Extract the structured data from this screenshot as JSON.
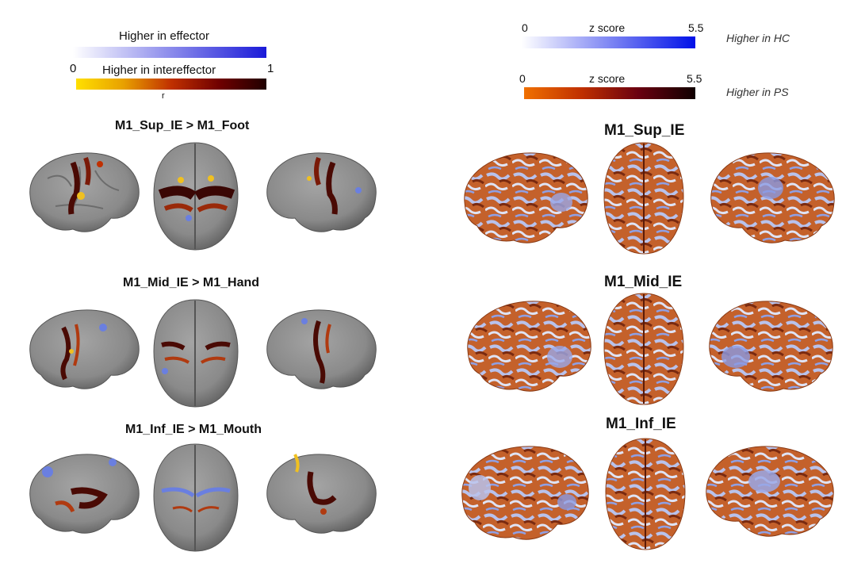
{
  "left_panel": {
    "legend": {
      "top_label": "Higher in effector",
      "bottom_label": "Higher in intereffector",
      "tick_min": "0",
      "tick_max": "1",
      "unit": "r",
      "blue_scale": [
        "#ffffff",
        "#1a1ad8"
      ],
      "heat_scale": [
        "#ffe000",
        "#e8a000",
        "#c03000",
        "#700000",
        "#200000"
      ]
    },
    "rows": [
      {
        "title": "M1_Sup_IE > M1_Foot"
      },
      {
        "title": "M1_Mid_IE > M1_Hand"
      },
      {
        "title": "M1_Inf_IE > M1_Mouth"
      }
    ]
  },
  "right_panel": {
    "legend_hc": {
      "tick_min": "0",
      "label": "z score",
      "tick_max": "5.5",
      "side_label": "Higher in HC",
      "scale": [
        "#ffffff",
        "#0010e8"
      ]
    },
    "legend_ps": {
      "tick_min": "0",
      "label": "z score",
      "tick_max": "5.5",
      "side_label": "Higher in PS",
      "scale": [
        "#f07000",
        "#c03000",
        "#6a0010",
        "#100000"
      ]
    },
    "rows": [
      {
        "title": "M1_Sup_IE"
      },
      {
        "title": "M1_Mid_IE"
      },
      {
        "title": "M1_Inf_IE"
      }
    ]
  },
  "colors": {
    "cortex_gray": "#8e8e8e",
    "cortex_shadow": "#5f5f5f",
    "heat_dark": "#4a0a04",
    "heat_mid": "#b03a10",
    "heat_yellow": "#f0c020",
    "blue_map": "#6a7fe0",
    "orange_cortex": "#c4612b",
    "lightblue_cortex": "#b8c2ec"
  }
}
